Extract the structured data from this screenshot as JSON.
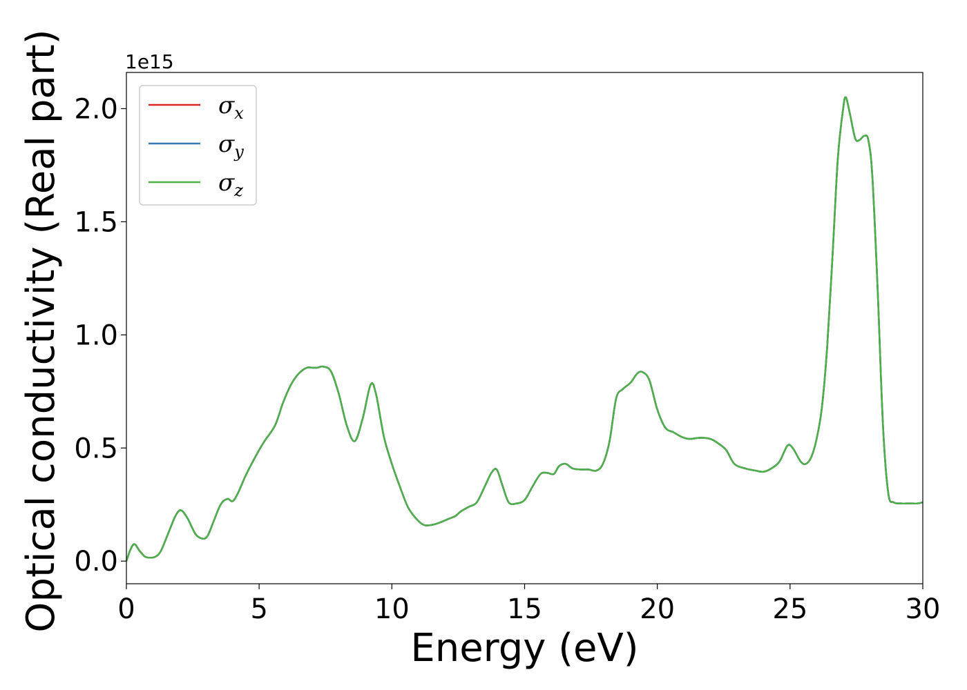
{
  "chart_data": {
    "type": "line",
    "xlabel": "Energy (eV)",
    "ylabel": "Optical conductivity (Real part)",
    "y_offset_label": "1e15",
    "xlim": [
      0,
      30
    ],
    "ylim": [
      -0.1,
      2.16
    ],
    "x_ticks": [
      0,
      5,
      10,
      15,
      20,
      25,
      30
    ],
    "x_tick_labels": [
      "0",
      "5",
      "10",
      "15",
      "20",
      "25",
      "30"
    ],
    "y_ticks": [
      0.0,
      0.5,
      1.0,
      1.5,
      2.0
    ],
    "y_tick_labels": [
      "0.0",
      "0.5",
      "1.0",
      "1.5",
      "2.0"
    ],
    "grid": false,
    "legend_position": "top-left",
    "x": [
      0,
      0.15,
      0.3,
      0.5,
      0.7,
      0.9,
      1.1,
      1.3,
      1.6,
      1.85,
      2.05,
      2.3,
      2.6,
      2.85,
      3.05,
      3.3,
      3.55,
      3.8,
      4.0,
      4.2,
      4.5,
      4.9,
      5.2,
      5.6,
      5.9,
      6.2,
      6.5,
      6.8,
      7.0,
      7.2,
      7.4,
      7.7,
      8.0,
      8.3,
      8.6,
      8.9,
      9.2,
      9.4,
      9.7,
      10.0,
      10.3,
      10.6,
      10.9,
      11.2,
      11.5,
      11.8,
      12.1,
      12.4,
      12.6,
      12.9,
      13.2,
      13.5,
      13.75,
      13.95,
      14.15,
      14.4,
      14.7,
      15.0,
      15.3,
      15.6,
      15.85,
      16.1,
      16.3,
      16.55,
      16.8,
      17.1,
      17.4,
      17.7,
      17.95,
      18.2,
      18.45,
      18.7,
      19.0,
      19.25,
      19.45,
      19.7,
      20.0,
      20.3,
      20.6,
      20.9,
      21.2,
      21.6,
      22.0,
      22.3,
      22.6,
      22.9,
      23.3,
      23.7,
      24.0,
      24.3,
      24.6,
      24.9,
      25.1,
      25.4,
      25.6,
      25.8,
      26.0,
      26.2,
      26.4,
      26.6,
      26.8,
      27.0,
      27.1,
      27.25,
      27.45,
      27.6,
      27.8,
      27.95,
      28.1,
      28.3,
      28.5,
      28.7,
      28.9,
      29.2,
      29.5,
      29.8,
      30.0
    ],
    "series": [
      {
        "name": "σx",
        "color": "#d62728",
        "values": [
          0.0,
          0.05,
          0.075,
          0.045,
          0.02,
          0.015,
          0.02,
          0.045,
          0.13,
          0.2,
          0.225,
          0.19,
          0.12,
          0.1,
          0.11,
          0.18,
          0.25,
          0.275,
          0.265,
          0.3,
          0.38,
          0.47,
          0.53,
          0.6,
          0.7,
          0.78,
          0.83,
          0.855,
          0.855,
          0.855,
          0.86,
          0.84,
          0.74,
          0.6,
          0.53,
          0.63,
          0.78,
          0.74,
          0.55,
          0.43,
          0.33,
          0.24,
          0.19,
          0.16,
          0.16,
          0.17,
          0.185,
          0.2,
          0.22,
          0.24,
          0.26,
          0.33,
          0.39,
          0.405,
          0.34,
          0.26,
          0.255,
          0.27,
          0.33,
          0.385,
          0.39,
          0.385,
          0.42,
          0.43,
          0.41,
          0.405,
          0.405,
          0.4,
          0.43,
          0.53,
          0.72,
          0.76,
          0.79,
          0.83,
          0.835,
          0.8,
          0.67,
          0.59,
          0.57,
          0.55,
          0.54,
          0.545,
          0.54,
          0.52,
          0.49,
          0.43,
          0.41,
          0.4,
          0.395,
          0.41,
          0.44,
          0.51,
          0.5,
          0.44,
          0.43,
          0.46,
          0.54,
          0.68,
          0.95,
          1.35,
          1.78,
          2.0,
          2.05,
          1.98,
          1.87,
          1.86,
          1.88,
          1.86,
          1.7,
          1.2,
          0.6,
          0.3,
          0.26,
          0.255,
          0.255,
          0.255,
          0.26
        ]
      },
      {
        "name": "σy",
        "color": "#377eb8",
        "values": [
          0.0,
          0.05,
          0.075,
          0.045,
          0.02,
          0.015,
          0.02,
          0.045,
          0.13,
          0.2,
          0.225,
          0.19,
          0.12,
          0.1,
          0.11,
          0.18,
          0.25,
          0.275,
          0.265,
          0.3,
          0.38,
          0.47,
          0.53,
          0.6,
          0.7,
          0.78,
          0.83,
          0.855,
          0.855,
          0.855,
          0.86,
          0.84,
          0.74,
          0.6,
          0.53,
          0.63,
          0.78,
          0.74,
          0.55,
          0.43,
          0.33,
          0.24,
          0.19,
          0.16,
          0.16,
          0.17,
          0.185,
          0.2,
          0.22,
          0.24,
          0.26,
          0.33,
          0.39,
          0.405,
          0.34,
          0.26,
          0.255,
          0.27,
          0.33,
          0.385,
          0.39,
          0.385,
          0.42,
          0.43,
          0.41,
          0.405,
          0.405,
          0.4,
          0.43,
          0.53,
          0.72,
          0.76,
          0.79,
          0.83,
          0.835,
          0.8,
          0.67,
          0.59,
          0.57,
          0.55,
          0.54,
          0.545,
          0.54,
          0.52,
          0.49,
          0.43,
          0.41,
          0.4,
          0.395,
          0.41,
          0.44,
          0.51,
          0.5,
          0.44,
          0.43,
          0.46,
          0.54,
          0.68,
          0.95,
          1.35,
          1.78,
          2.0,
          2.05,
          1.98,
          1.87,
          1.86,
          1.88,
          1.86,
          1.7,
          1.2,
          0.6,
          0.3,
          0.26,
          0.255,
          0.255,
          0.255,
          0.26
        ]
      },
      {
        "name": "σz",
        "color": "#4daf4a",
        "values": [
          0.0,
          0.05,
          0.075,
          0.045,
          0.02,
          0.015,
          0.02,
          0.045,
          0.13,
          0.2,
          0.225,
          0.19,
          0.12,
          0.1,
          0.11,
          0.18,
          0.25,
          0.275,
          0.265,
          0.3,
          0.38,
          0.47,
          0.53,
          0.6,
          0.7,
          0.78,
          0.83,
          0.855,
          0.855,
          0.855,
          0.86,
          0.84,
          0.74,
          0.6,
          0.53,
          0.63,
          0.78,
          0.74,
          0.55,
          0.43,
          0.33,
          0.24,
          0.19,
          0.16,
          0.16,
          0.17,
          0.185,
          0.2,
          0.22,
          0.24,
          0.26,
          0.33,
          0.39,
          0.405,
          0.34,
          0.26,
          0.255,
          0.27,
          0.33,
          0.385,
          0.39,
          0.385,
          0.42,
          0.43,
          0.41,
          0.405,
          0.405,
          0.4,
          0.43,
          0.53,
          0.72,
          0.76,
          0.79,
          0.83,
          0.835,
          0.8,
          0.67,
          0.59,
          0.57,
          0.55,
          0.54,
          0.545,
          0.54,
          0.52,
          0.49,
          0.43,
          0.41,
          0.4,
          0.395,
          0.41,
          0.44,
          0.51,
          0.5,
          0.44,
          0.43,
          0.46,
          0.54,
          0.68,
          0.95,
          1.35,
          1.78,
          2.0,
          2.05,
          1.98,
          1.87,
          1.86,
          1.88,
          1.86,
          1.7,
          1.2,
          0.6,
          0.3,
          0.26,
          0.255,
          0.255,
          0.255,
          0.26
        ]
      }
    ]
  }
}
